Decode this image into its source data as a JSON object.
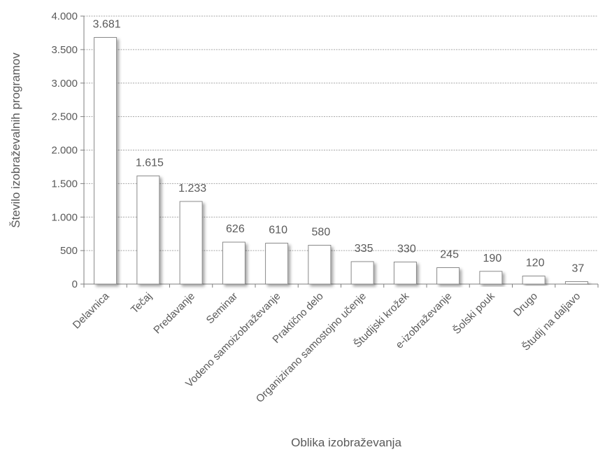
{
  "chart_data": {
    "type": "bar",
    "xlabel": "Oblika izobraževanja",
    "ylabel": "Število izobraževalnih programov",
    "ylim": [
      0,
      4000
    ],
    "yticks": [
      0,
      500,
      1000,
      1500,
      2000,
      2500,
      3000,
      3500,
      4000
    ],
    "ytick_labels": [
      "0",
      "500",
      "1.000",
      "1.500",
      "2.000",
      "2.500",
      "3.000",
      "3.500",
      "4.000"
    ],
    "grid": true,
    "categories": [
      "Delavnica",
      "Tečaj",
      "Predavanje",
      "Seminar",
      "Vodeno samoizobraževanje",
      "Praktično delo",
      "Organizirano samostojno učenje",
      "Študijski krožek",
      "e-izobraževanje",
      "Šolski pouk",
      "Drugo",
      "Študij na daljavo"
    ],
    "values": [
      3681,
      1615,
      1233,
      626,
      610,
      580,
      335,
      330,
      245,
      190,
      120,
      37
    ],
    "value_labels": [
      "3.681",
      "1.615",
      "1.233",
      "626",
      "610",
      "580",
      "335",
      "330",
      "245",
      "190",
      "120",
      "37"
    ],
    "colors": {
      "bar_fill": "#ffffff",
      "bar_stroke": "#7f7f7f",
      "grid": "#a6a6a6",
      "text": "#595959"
    }
  }
}
